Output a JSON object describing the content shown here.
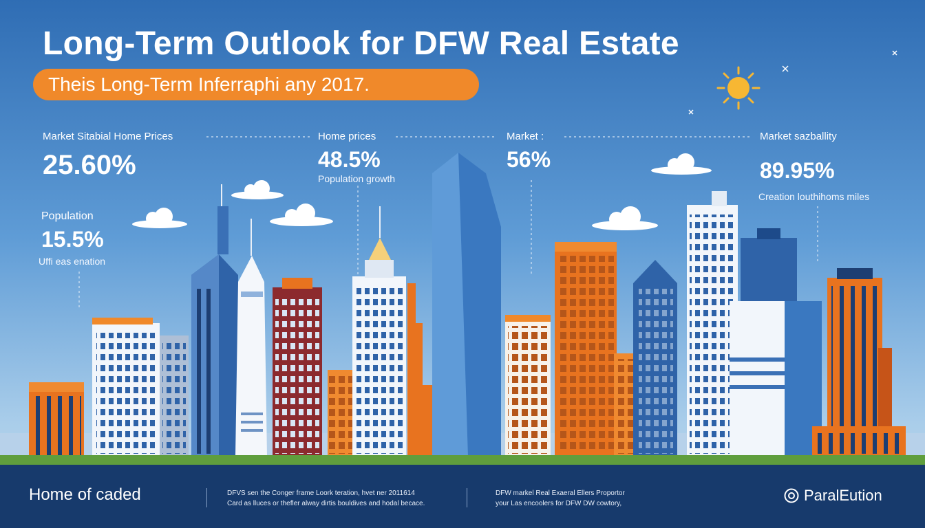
{
  "header": {
    "title": "Long-Term Outlook for DFW Real Estate",
    "subtitle": "Theis Long-Term Inferraphi any 2017."
  },
  "stats": [
    {
      "label": "Market Sitabial Home Prices",
      "value": "25.60%"
    },
    {
      "label": "Population",
      "value": "15.5%",
      "note": "Uffi eas enation"
    },
    {
      "label": "Home prices",
      "value": "48.5%",
      "note": "Population growth"
    },
    {
      "label": "Market :",
      "value": "56%"
    },
    {
      "label": "Market sazballity",
      "value": "89.95%",
      "note": "Creation louthihoms miles"
    }
  ],
  "footer": {
    "title": "Home of caded",
    "text1": [
      "DFVS sen the Conger frame Loork teration, hvet ner 2011614",
      "Card as lluces or thefler alway dirtis bouldives and hodal becace."
    ],
    "text2": [
      "DFW markel Real Exaeral Ellers Proportor",
      "your Las encoolers for DFW DW cowtory,"
    ],
    "brand": "ParalEution"
  },
  "colors": {
    "sky_top": "#2f6db4",
    "sky_bottom": "#c9def0",
    "accent_orange": "#f0892a",
    "footer_navy": "#173a6c",
    "sun": "#f7b733"
  },
  "icons": {
    "sun": "sun-icon",
    "brand": "brand-logo-icon"
  }
}
